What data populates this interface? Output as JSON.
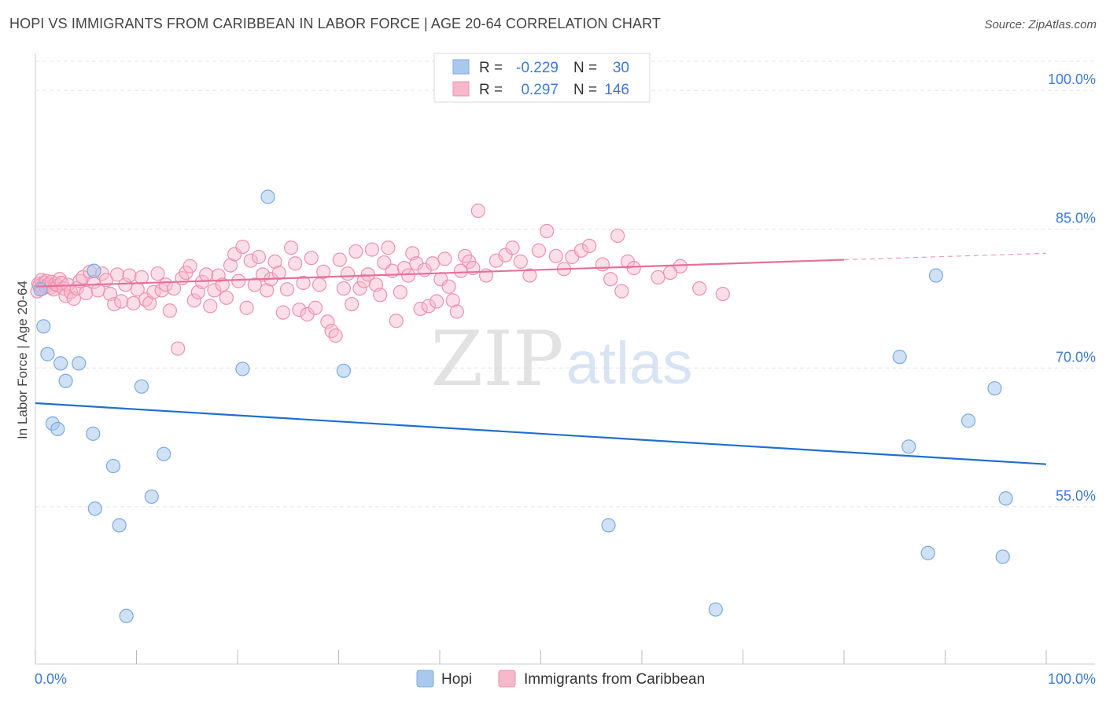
{
  "title": "HOPI VS IMMIGRANTS FROM CARIBBEAN IN LABOR FORCE | AGE 20-64 CORRELATION CHART",
  "source": "Source: ZipAtlas.com",
  "watermark": {
    "zip": "ZIP",
    "atlas": "atlas"
  },
  "colors": {
    "hopi_fill": "#aac8ee",
    "hopi_stroke": "#7aaae0",
    "hopi_line": "#1f6fd0",
    "carib_fill": "#f7b8cc",
    "carib_stroke": "#ee90ae",
    "carib_line": "#e86f98",
    "value_text": "#3d7bd1",
    "grid": "#e3e3e3"
  },
  "legend_top": [
    {
      "r_label": "R =",
      "r_value": "-0.229",
      "n_label": "N =",
      "n_value": "30"
    },
    {
      "r_label": "R =",
      "r_value": "0.297",
      "n_label": "N =",
      "n_value": "146"
    }
  ],
  "chart_data": {
    "type": "scatter",
    "xlabel": "",
    "ylabel": "In Labor Force | Age 20-64",
    "xlim": [
      0,
      100
    ],
    "ylim": [
      38,
      104
    ],
    "x_tick_labels": [
      {
        "value": 0,
        "label": "0.0%"
      },
      {
        "value": 100,
        "label": "100.0%"
      }
    ],
    "y_tick_labels": [
      {
        "value": 100,
        "label": "100.0%"
      },
      {
        "value": 85,
        "label": "85.0%"
      },
      {
        "value": 70,
        "label": "70.0%"
      },
      {
        "value": 55,
        "label": "55.0%"
      }
    ],
    "series": [
      {
        "name": "Hopi",
        "r": -0.229,
        "n": 30,
        "trend": {
          "x0": 0,
          "y0": 66.2,
          "x1": 100,
          "y1": 59.6
        },
        "points": [
          [
            0.5,
            78.5
          ],
          [
            0.8,
            74.5
          ],
          [
            1.2,
            71.5
          ],
          [
            2.5,
            70.5
          ],
          [
            4.3,
            70.5
          ],
          [
            3.0,
            68.6
          ],
          [
            1.7,
            64.0
          ],
          [
            2.2,
            63.4
          ],
          [
            5.8,
            80.5
          ],
          [
            5.7,
            62.9
          ],
          [
            7.7,
            59.4
          ],
          [
            5.9,
            54.8
          ],
          [
            8.3,
            53.0
          ],
          [
            9.0,
            43.2
          ],
          [
            10.5,
            68.0
          ],
          [
            11.5,
            56.1
          ],
          [
            12.7,
            60.7
          ],
          [
            20.5,
            69.9
          ],
          [
            23.0,
            88.5
          ],
          [
            30.5,
            69.7
          ],
          [
            56.7,
            53.0
          ],
          [
            67.3,
            43.9
          ],
          [
            85.5,
            71.2
          ],
          [
            86.4,
            61.5
          ],
          [
            88.3,
            50.0
          ],
          [
            89.1,
            80.0
          ],
          [
            92.3,
            64.3
          ],
          [
            94.9,
            67.8
          ],
          [
            95.7,
            49.6
          ],
          [
            96.0,
            55.9
          ]
        ]
      },
      {
        "name": "Immigrants from Caribbean",
        "r": 0.297,
        "n": 146,
        "trend": {
          "x0": 0,
          "y0": 78.8,
          "x1": 80,
          "y1": 81.7
        },
        "trend_dashed": {
          "x0": 80,
          "y0": 81.7,
          "x1": 100,
          "y1": 82.4
        },
        "points": [
          [
            0.2,
            78.3
          ],
          [
            0.3,
            79.1
          ],
          [
            0.4,
            78.9
          ],
          [
            0.6,
            79.5
          ],
          [
            0.7,
            78.6
          ],
          [
            0.9,
            79.2
          ],
          [
            1.0,
            78.8
          ],
          [
            1.1,
            79.4
          ],
          [
            1.3,
            79.0
          ],
          [
            1.5,
            78.7
          ],
          [
            1.6,
            79.3
          ],
          [
            1.8,
            78.5
          ],
          [
            2.0,
            79.1
          ],
          [
            2.2,
            78.9
          ],
          [
            2.4,
            79.6
          ],
          [
            2.6,
            79.2
          ],
          [
            2.8,
            78.6
          ],
          [
            3.0,
            77.8
          ],
          [
            3.2,
            79.0
          ],
          [
            3.5,
            78.2
          ],
          [
            3.8,
            77.5
          ],
          [
            4.1,
            78.6
          ],
          [
            4.4,
            79.4
          ],
          [
            4.7,
            79.8
          ],
          [
            5.0,
            78.1
          ],
          [
            5.4,
            80.4
          ],
          [
            5.8,
            79.3
          ],
          [
            6.2,
            78.4
          ],
          [
            6.6,
            80.2
          ],
          [
            7.0,
            79.5
          ],
          [
            7.4,
            78.0
          ],
          [
            7.8,
            76.9
          ],
          [
            8.1,
            80.1
          ],
          [
            8.5,
            77.2
          ],
          [
            8.9,
            79.0
          ],
          [
            9.3,
            80.0
          ],
          [
            9.7,
            77.0
          ],
          [
            10.1,
            78.5
          ],
          [
            10.5,
            79.8
          ],
          [
            10.9,
            77.4
          ],
          [
            11.3,
            77.0
          ],
          [
            11.7,
            78.2
          ],
          [
            12.1,
            80.2
          ],
          [
            12.5,
            78.4
          ],
          [
            12.9,
            79.0
          ],
          [
            13.3,
            76.2
          ],
          [
            13.7,
            78.6
          ],
          [
            14.1,
            72.1
          ],
          [
            14.5,
            79.7
          ],
          [
            14.9,
            80.3
          ],
          [
            15.3,
            81.0
          ],
          [
            15.7,
            77.3
          ],
          [
            16.1,
            78.2
          ],
          [
            16.5,
            79.3
          ],
          [
            16.9,
            80.1
          ],
          [
            17.3,
            76.7
          ],
          [
            17.7,
            78.4
          ],
          [
            18.1,
            80.0
          ],
          [
            18.5,
            79.0
          ],
          [
            18.9,
            77.6
          ],
          [
            19.3,
            81.1
          ],
          [
            19.7,
            82.3
          ],
          [
            20.1,
            79.4
          ],
          [
            20.5,
            83.1
          ],
          [
            20.9,
            76.5
          ],
          [
            21.3,
            81.6
          ],
          [
            21.7,
            79.0
          ],
          [
            22.1,
            82.0
          ],
          [
            22.5,
            80.1
          ],
          [
            22.9,
            78.4
          ],
          [
            23.3,
            79.6
          ],
          [
            23.7,
            81.5
          ],
          [
            24.1,
            80.3
          ],
          [
            24.5,
            76.0
          ],
          [
            24.9,
            78.5
          ],
          [
            25.3,
            83.0
          ],
          [
            25.7,
            81.3
          ],
          [
            26.1,
            76.3
          ],
          [
            26.5,
            79.2
          ],
          [
            26.9,
            75.8
          ],
          [
            27.3,
            81.9
          ],
          [
            27.7,
            76.5
          ],
          [
            28.1,
            79.0
          ],
          [
            28.5,
            80.4
          ],
          [
            28.9,
            75.0
          ],
          [
            29.3,
            74.0
          ],
          [
            29.7,
            73.5
          ],
          [
            30.1,
            81.7
          ],
          [
            30.5,
            78.6
          ],
          [
            30.9,
            80.2
          ],
          [
            31.3,
            76.9
          ],
          [
            31.7,
            82.6
          ],
          [
            32.1,
            78.6
          ],
          [
            32.5,
            79.4
          ],
          [
            32.9,
            80.1
          ],
          [
            33.3,
            82.8
          ],
          [
            33.7,
            79.0
          ],
          [
            34.1,
            77.9
          ],
          [
            34.5,
            81.4
          ],
          [
            34.9,
            83.0
          ],
          [
            35.3,
            80.5
          ],
          [
            35.7,
            75.1
          ],
          [
            36.1,
            78.2
          ],
          [
            36.5,
            80.8
          ],
          [
            36.9,
            80.0
          ],
          [
            37.3,
            82.4
          ],
          [
            37.7,
            81.3
          ],
          [
            38.1,
            76.4
          ],
          [
            38.5,
            80.6
          ],
          [
            38.9,
            76.7
          ],
          [
            39.3,
            81.3
          ],
          [
            39.7,
            77.2
          ],
          [
            40.1,
            79.6
          ],
          [
            40.5,
            81.8
          ],
          [
            40.9,
            78.8
          ],
          [
            41.3,
            77.3
          ],
          [
            41.7,
            76.1
          ],
          [
            42.1,
            80.5
          ],
          [
            42.5,
            82.1
          ],
          [
            42.9,
            81.5
          ],
          [
            43.3,
            80.8
          ],
          [
            43.8,
            87.0
          ],
          [
            44.6,
            80.0
          ],
          [
            45.6,
            81.6
          ],
          [
            46.5,
            82.2
          ],
          [
            47.2,
            83.0
          ],
          [
            48.0,
            81.5
          ],
          [
            48.9,
            80.0
          ],
          [
            49.8,
            82.7
          ],
          [
            50.6,
            84.8
          ],
          [
            51.5,
            82.1
          ],
          [
            52.3,
            80.7
          ],
          [
            53.1,
            82.0
          ],
          [
            54.0,
            82.7
          ],
          [
            54.8,
            83.2
          ],
          [
            56.1,
            81.2
          ],
          [
            56.9,
            79.6
          ],
          [
            57.6,
            84.3
          ],
          [
            58.6,
            81.5
          ],
          [
            58.0,
            78.3
          ],
          [
            59.2,
            80.8
          ],
          [
            61.6,
            79.8
          ],
          [
            63.8,
            81.0
          ],
          [
            65.7,
            78.6
          ],
          [
            68.0,
            78.0
          ],
          [
            62.8,
            80.3
          ]
        ]
      }
    ]
  },
  "legend_bottom": [
    {
      "label": "Hopi"
    },
    {
      "label": "Immigrants from Caribbean"
    }
  ]
}
